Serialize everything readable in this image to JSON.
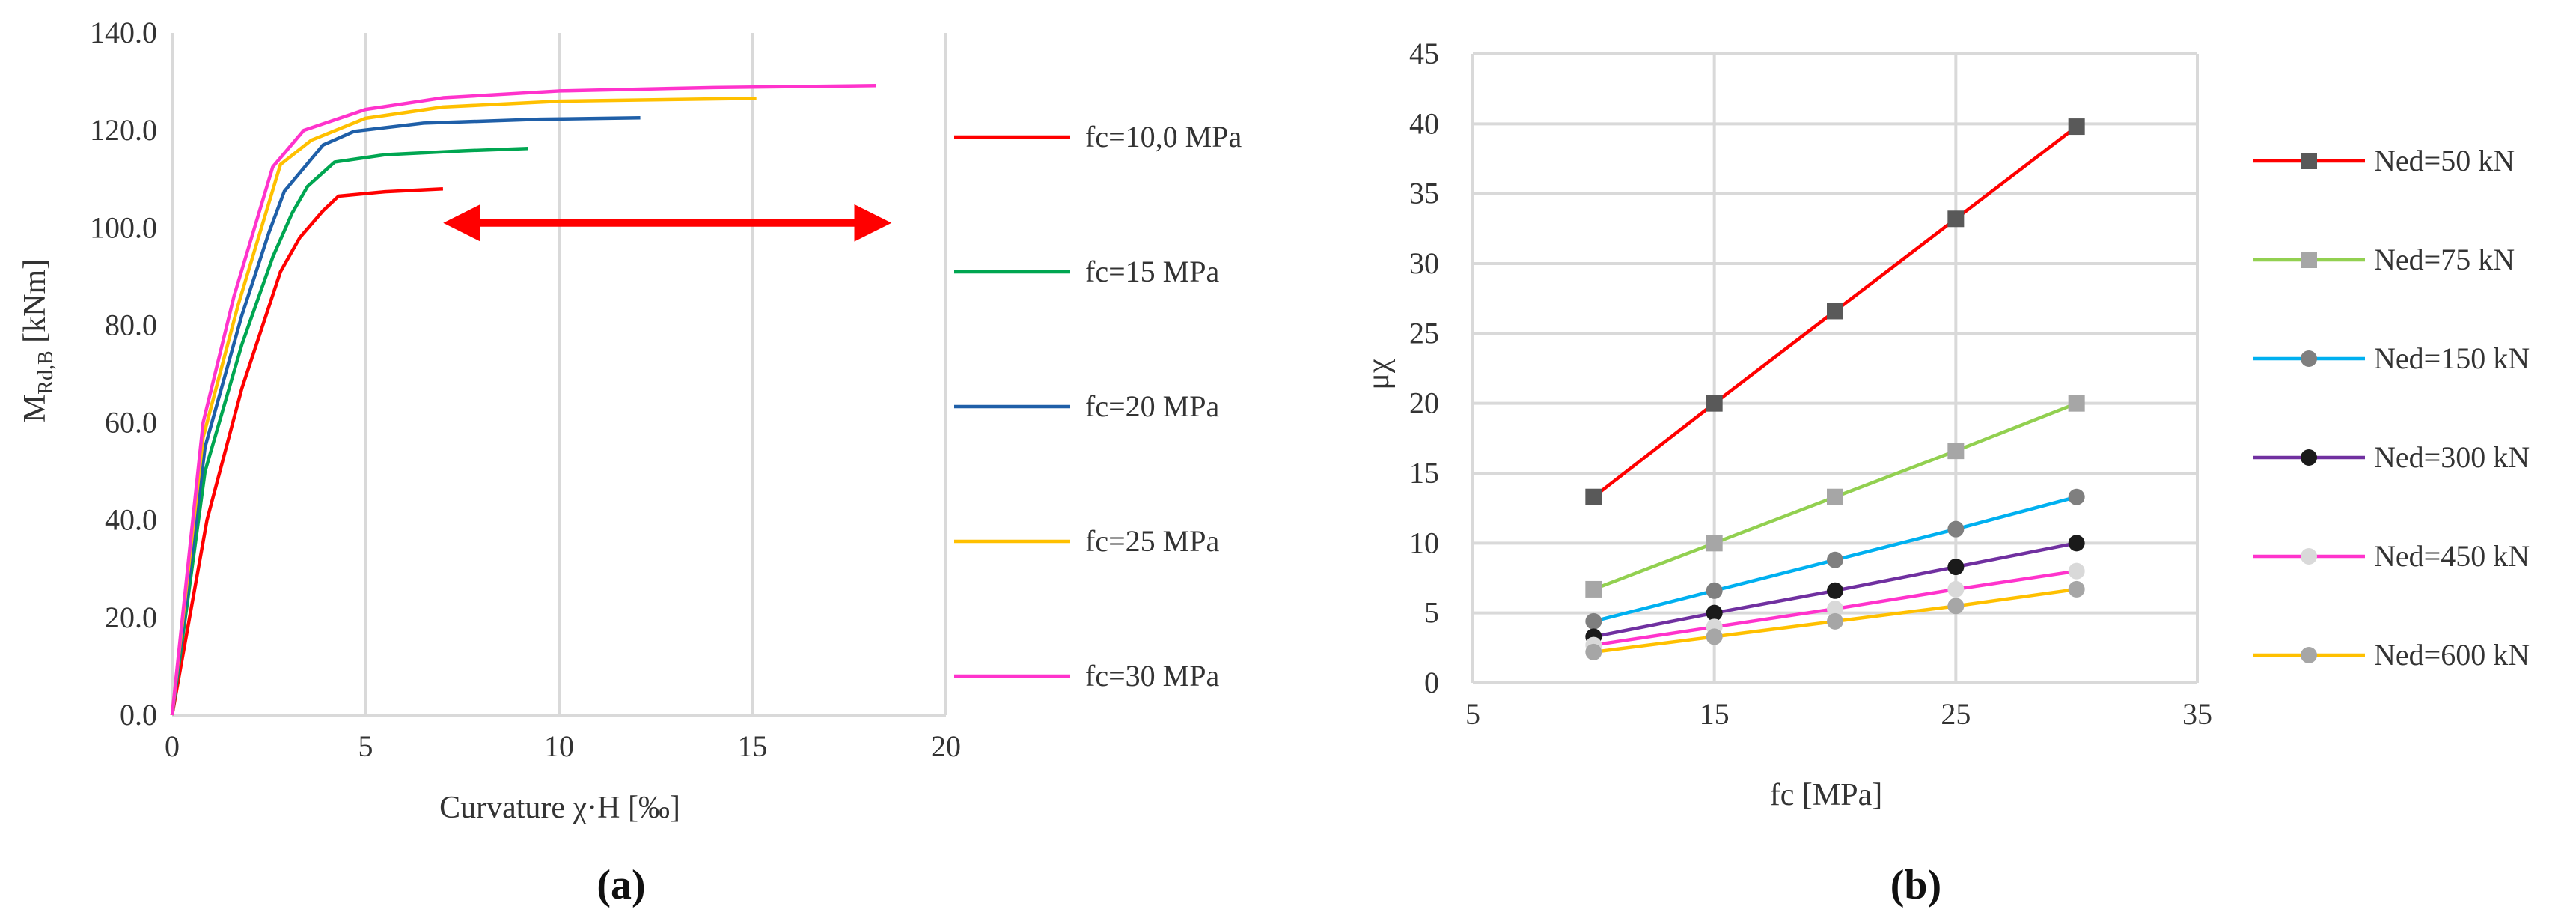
{
  "chart_data": [
    {
      "type": "line",
      "panel_label": "(a)",
      "xlabel": "Curvature χ·H [‰]",
      "ylabel_main": "M",
      "ylabel_sub": "Rd,B",
      "ylabel_unit": " [kNm]",
      "xlim": [
        0,
        20
      ],
      "ylim": [
        0,
        140
      ],
      "x_ticks": [
        "0",
        "5",
        "10",
        "15",
        "20"
      ],
      "y_ticks": [
        "0.0",
        "20.0",
        "40.0",
        "60.0",
        "80.0",
        "100.0",
        "120.0",
        "140.0"
      ],
      "grid": "vertical",
      "legend_position": "right",
      "annotation": "double-headed red arrow spanning curvature 7 to 18.5 at M ≈ 101",
      "arrow": {
        "x_start": 7.2,
        "x_end": 18.4,
        "y": 101,
        "color": "#ff0000"
      },
      "series": [
        {
          "name": "fc=10,0 MPa",
          "color": "#ff0000",
          "x": [
            0,
            0.9,
            1.8,
            2.8,
            3.3,
            3.9,
            4.3,
            5.5,
            7.0
          ],
          "y": [
            0,
            40,
            67,
            91,
            98,
            103.5,
            106.5,
            107.4,
            108.0
          ]
        },
        {
          "name": "fc=15 MPa",
          "color": "#00a651",
          "x": [
            0,
            0.85,
            1.8,
            2.6,
            3.1,
            3.5,
            4.2,
            5.5,
            7.5,
            9.2
          ],
          "y": [
            0,
            50,
            76,
            94,
            103,
            108.5,
            113.5,
            115,
            115.8,
            116.3
          ]
        },
        {
          "name": "fc=20 MPa",
          "color": "#1f5fa8",
          "x": [
            0,
            0.85,
            1.8,
            2.5,
            2.9,
            3.9,
            4.7,
            6.5,
            9.5,
            12.1
          ],
          "y": [
            0,
            55,
            82,
            99,
            107.5,
            117,
            119.8,
            121.5,
            122.3,
            122.6
          ]
        },
        {
          "name": "fc=25 MPa",
          "color": "#ffc000",
          "x": [
            0,
            0.8,
            1.7,
            2.8,
            3.6,
            5.0,
            7.0,
            10.0,
            15.1
          ],
          "y": [
            0,
            57,
            84,
            113,
            118,
            122.5,
            124.8,
            126,
            126.6
          ]
        },
        {
          "name": "fc=30 MPa",
          "color": "#ff33cc",
          "x": [
            0,
            0.8,
            1.6,
            2.6,
            3.4,
            5.0,
            7.0,
            10.0,
            14.0,
            18.2
          ],
          "y": [
            0,
            60,
            86,
            112.5,
            120,
            124.3,
            126.7,
            128.1,
            128.8,
            129.2
          ]
        }
      ]
    },
    {
      "type": "line",
      "panel_label": "(b)",
      "xlabel": "fc [MPa]",
      "ylabel": "μχ",
      "xlim": [
        5,
        35
      ],
      "ylim": [
        0,
        45
      ],
      "x_ticks": [
        "5",
        "15",
        "25",
        "35"
      ],
      "y_ticks": [
        "0",
        "5",
        "10",
        "15",
        "20",
        "25",
        "30",
        "35",
        "40",
        "45"
      ],
      "grid": "both",
      "legend_position": "right",
      "x": [
        10,
        15,
        20,
        25,
        30
      ],
      "series": [
        {
          "name": "Ned=50 kN",
          "color": "#ff0000",
          "marker": "square",
          "marker_color": "#595959",
          "values": [
            13.3,
            20.0,
            26.6,
            33.2,
            39.8
          ]
        },
        {
          "name": "Ned=75 kN",
          "color": "#92d050",
          "marker": "square",
          "marker_color": "#a6a6a6",
          "values": [
            6.7,
            10.0,
            13.3,
            16.6,
            20.0
          ]
        },
        {
          "name": "Ned=150 kN",
          "color": "#00b0f0",
          "marker": "circle",
          "marker_color": "#7f7f7f",
          "values": [
            4.4,
            6.6,
            8.8,
            11.0,
            13.3
          ]
        },
        {
          "name": "Ned=300 kN",
          "color": "#7030a0",
          "marker": "circle",
          "marker_color": "#1a1a1a",
          "values": [
            3.3,
            5.0,
            6.6,
            8.3,
            10.0
          ]
        },
        {
          "name": "Ned=450 kN",
          "color": "#ff33cc",
          "marker": "circle",
          "marker_color": "#d9d9d9",
          "values": [
            2.7,
            4.0,
            5.3,
            6.7,
            8.0
          ]
        },
        {
          "name": "Ned=600 kN",
          "color": "#ffc000",
          "marker": "circle",
          "marker_color": "#a6a6a6",
          "values": [
            2.2,
            3.3,
            4.4,
            5.5,
            6.7
          ]
        }
      ]
    }
  ]
}
